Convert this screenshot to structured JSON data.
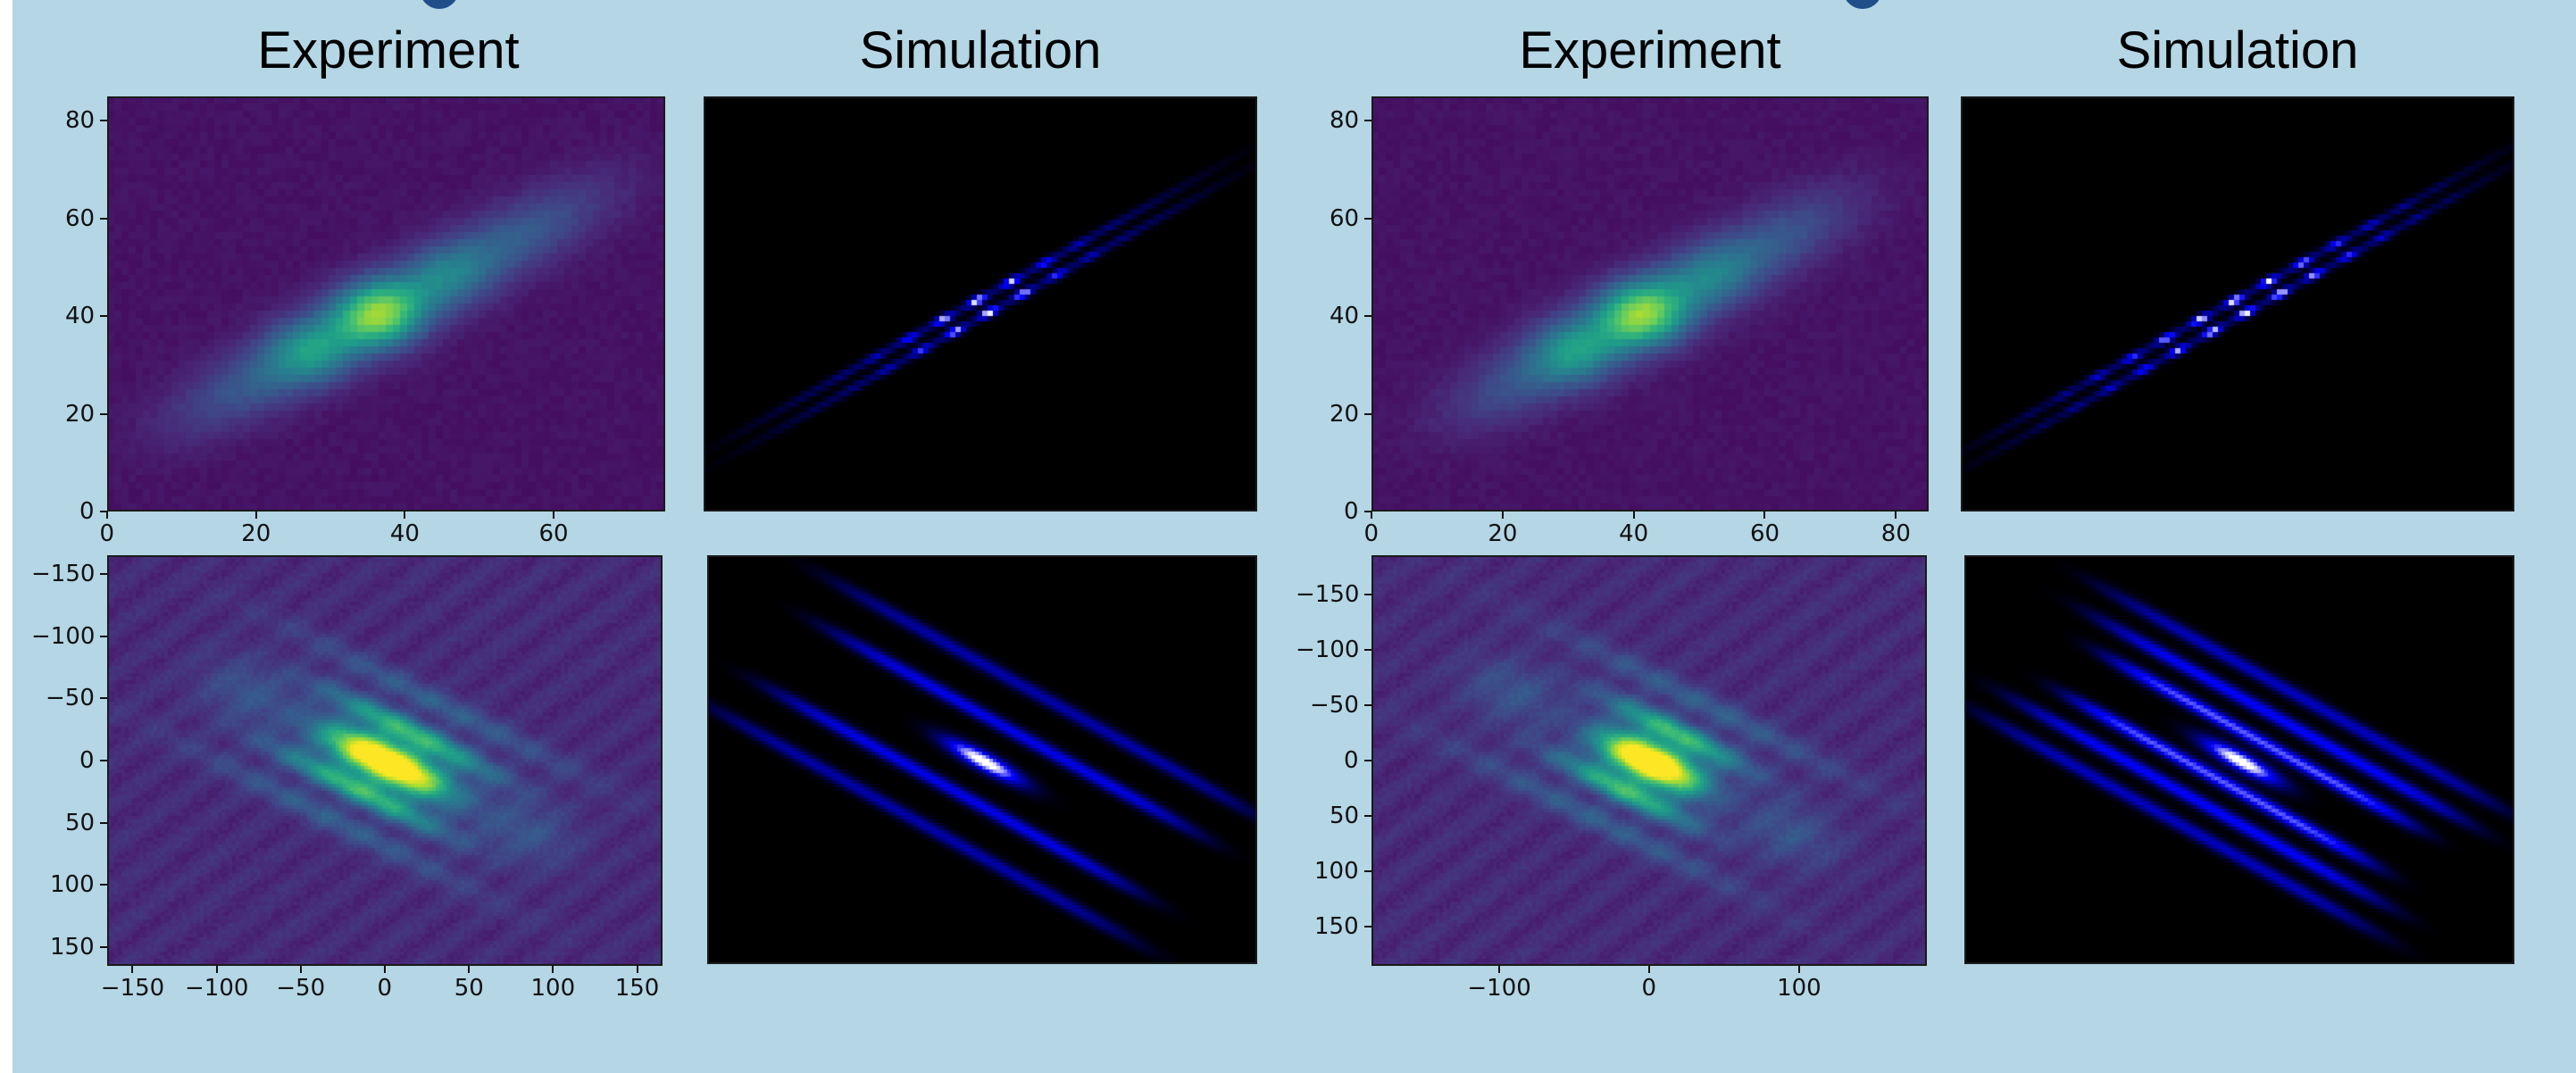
{
  "columns": [
    {
      "title": "Experiment"
    },
    {
      "title": "Simulation"
    },
    {
      "title": "Experiment"
    },
    {
      "title": "Simulation"
    }
  ],
  "chart_data": [
    {
      "type": "heatmap",
      "panel": "experiment-1-top",
      "title": "Experiment",
      "colormap": "viridis",
      "xlim": [
        0,
        75
      ],
      "ylim": [
        0,
        85
      ],
      "xticks": [
        0,
        20,
        40,
        60
      ],
      "yticks": [
        0,
        20,
        40,
        60,
        80
      ],
      "y_inverted": false
    },
    {
      "type": "heatmap",
      "panel": "simulation-1-top",
      "title": "Simulation",
      "colormap": "black-blue-white",
      "xticks": [],
      "yticks": []
    },
    {
      "type": "heatmap",
      "panel": "experiment-2-top",
      "title": "Experiment",
      "colormap": "viridis",
      "xlim": [
        0,
        85
      ],
      "ylim": [
        0,
        85
      ],
      "xticks": [
        0,
        20,
        40,
        60,
        80
      ],
      "yticks": [
        0,
        20,
        40,
        60,
        80
      ],
      "y_inverted": false
    },
    {
      "type": "heatmap",
      "panel": "simulation-2-top",
      "title": "Simulation",
      "colormap": "black-blue-white",
      "xticks": [],
      "yticks": []
    },
    {
      "type": "heatmap",
      "panel": "experiment-1-bottom",
      "colormap": "viridis",
      "xlim": [
        -165,
        165
      ],
      "ylim": [
        -165,
        165
      ],
      "xticks": [
        -150,
        -100,
        -50,
        0,
        50,
        100,
        150
      ],
      "yticks": [
        -150,
        -100,
        -50,
        0,
        50,
        100,
        150
      ],
      "y_inverted": true
    },
    {
      "type": "heatmap",
      "panel": "simulation-1-bottom",
      "colormap": "black-blue-white",
      "xticks": [],
      "yticks": []
    },
    {
      "type": "heatmap",
      "panel": "experiment-2-bottom",
      "colormap": "viridis",
      "xlim": [
        -185,
        185
      ],
      "ylim": [
        -185,
        185
      ],
      "xticks": [
        -100,
        0,
        100
      ],
      "yticks": [
        -150,
        -100,
        -50,
        0,
        50,
        100,
        150
      ],
      "y_inverted": true
    },
    {
      "type": "heatmap",
      "panel": "simulation-2-bottom",
      "colormap": "black-blue-white",
      "xticks": [],
      "yticks": []
    }
  ]
}
